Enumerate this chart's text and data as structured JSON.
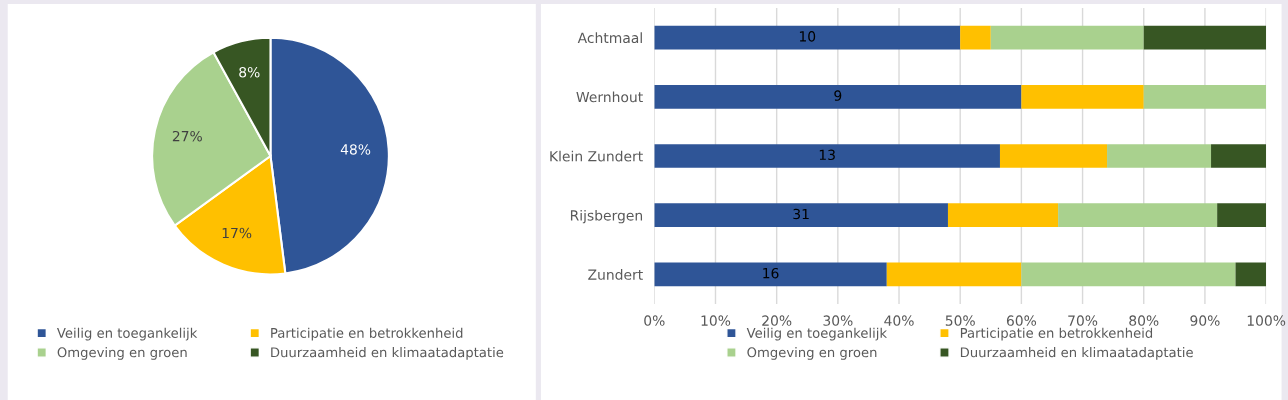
{
  "chart_data": [
    {
      "type": "pie",
      "categories": [
        "Veilig en toegankelijk",
        "Participatie en betrokkenheid",
        "Omgeving en groen",
        "Duurzaamheid en klimaatadaptatie"
      ],
      "values": [
        48,
        17,
        27,
        8
      ],
      "colors": [
        "#2f5597",
        "#ffc000",
        "#a9d18e",
        "#375623"
      ],
      "value_labels": [
        "48%",
        "17%",
        "27%",
        "8%"
      ],
      "legend": "bottom"
    },
    {
      "type": "bar",
      "orientation": "horizontal",
      "stacked": true,
      "categories": [
        "Achtmaal",
        "Wernhout",
        "Klein Zundert",
        "Rijsbergen",
        "Zundert"
      ],
      "series": [
        {
          "name": "Veilig en toegankelijk",
          "color": "#2f5597",
          "values": [
            50,
            60,
            56.5,
            48,
            38
          ]
        },
        {
          "name": "Participatie en betrokkenheid",
          "color": "#ffc000",
          "values": [
            5,
            20,
            17.5,
            18,
            22
          ]
        },
        {
          "name": "Omgeving en groen",
          "color": "#a9d18e",
          "values": [
            25,
            20,
            17,
            26,
            35
          ]
        },
        {
          "name": "Duurzaamheid en klimaatadaptatie",
          "color": "#375623",
          "values": [
            20,
            0,
            9,
            8,
            5
          ]
        }
      ],
      "xlim": [
        0,
        100
      ],
      "xticks": [
        {
          "value": 0,
          "label": "0%"
        },
        {
          "value": 10,
          "label": "10%"
        },
        {
          "value": 20,
          "label": "20%"
        },
        {
          "value": 30,
          "label": "30%"
        },
        {
          "value": 40,
          "label": "40%"
        },
        {
          "value": 50,
          "label": "50%"
        },
        {
          "value": 60,
          "label": "60%"
        },
        {
          "value": 70,
          "label": "70%"
        },
        {
          "value": 80,
          "label": "80%"
        },
        {
          "value": 90,
          "label": "90%"
        },
        {
          "value": 100,
          "label": "100%"
        }
      ],
      "annotations": [
        "10",
        "9",
        "13",
        "31",
        "16"
      ],
      "grid": "x",
      "legend": "bottom"
    }
  ]
}
